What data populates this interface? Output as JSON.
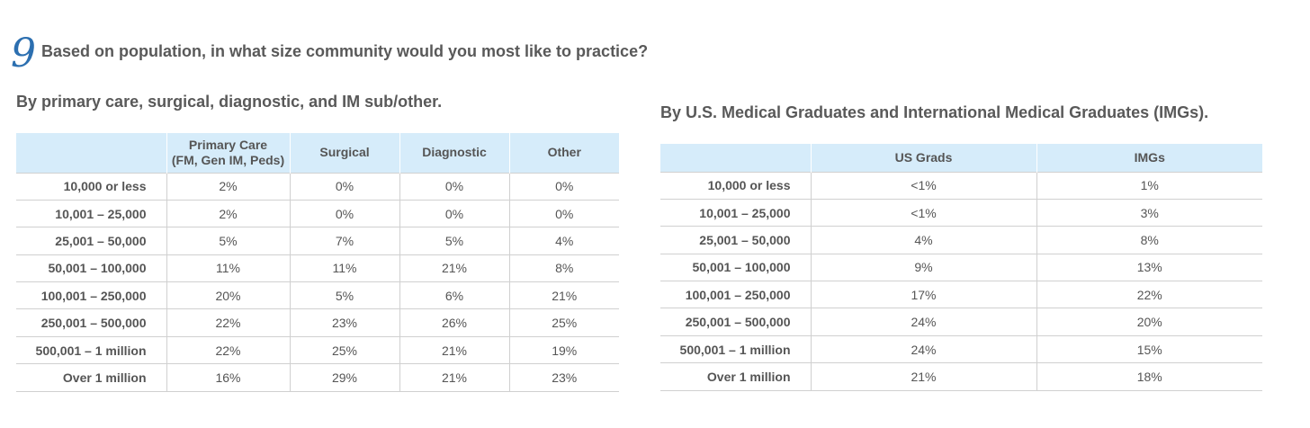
{
  "question": {
    "number": "9",
    "text": "Based on population, in what size community would you most like to practice?"
  },
  "left_table": {
    "subtitle": "By primary care, surgical, diagnostic, and IM sub/other.",
    "headers": [
      "",
      "Primary Care\n(FM, Gen IM, Peds)",
      "Surgical",
      "Diagnostic",
      "Other"
    ],
    "rows": [
      [
        "10,000 or less",
        "2%",
        "0%",
        "0%",
        "0%"
      ],
      [
        "10,001 – 25,000",
        "2%",
        "0%",
        "0%",
        "0%"
      ],
      [
        "25,001 – 50,000",
        "5%",
        "7%",
        "5%",
        "4%"
      ],
      [
        "50,001 – 100,000",
        "11%",
        "11%",
        "21%",
        "8%"
      ],
      [
        "100,001 – 250,000",
        "20%",
        "5%",
        "6%",
        "21%"
      ],
      [
        "250,001 – 500,000",
        "22%",
        "23%",
        "26%",
        "25%"
      ],
      [
        "500,001 – 1 million",
        "22%",
        "25%",
        "21%",
        "19%"
      ],
      [
        "Over 1 million",
        "16%",
        "29%",
        "21%",
        "23%"
      ]
    ]
  },
  "right_table": {
    "subtitle": "By U.S. Medical Graduates and International Medical Graduates (IMGs).",
    "headers": [
      "",
      "US Grads",
      "IMGs"
    ],
    "rows": [
      [
        "10,000 or less",
        "<1%",
        "1%"
      ],
      [
        "10,001 – 25,000",
        "<1%",
        "3%"
      ],
      [
        "25,001 – 50,000",
        "4%",
        "8%"
      ],
      [
        "50,001 – 100,000",
        "9%",
        "13%"
      ],
      [
        "100,001 – 250,000",
        "17%",
        "22%"
      ],
      [
        "250,001 – 500,000",
        "24%",
        "20%"
      ],
      [
        "500,001 – 1 million",
        "24%",
        "15%"
      ],
      [
        "Over 1 million",
        "21%",
        "18%"
      ]
    ]
  }
}
